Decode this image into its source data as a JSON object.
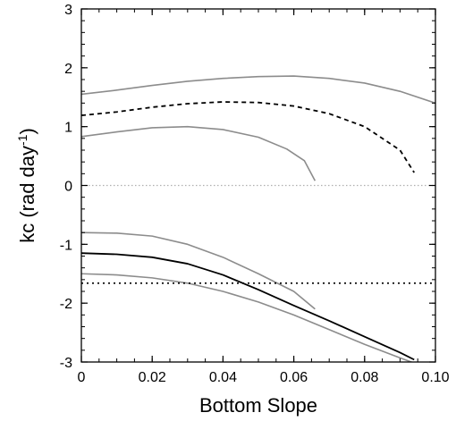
{
  "chart_data": {
    "type": "line",
    "xlabel": "Bottom Slope",
    "ylabel": {
      "main": "kc (rad day",
      "sup": "-1",
      "close": ")"
    },
    "xlim": [
      0,
      0.1
    ],
    "ylim": [
      -3,
      3
    ],
    "xticks": [
      0,
      0.02,
      0.04,
      0.06,
      0.08,
      0.1
    ],
    "xtick_labels": [
      "0",
      "0.02",
      "0.04",
      "0.06",
      "0.08",
      "0.10"
    ],
    "yticks": [
      -3,
      -2,
      -1,
      0,
      1,
      2,
      3
    ],
    "ytick_labels": [
      "-3",
      "-2",
      "-1",
      "0",
      "1",
      "2",
      "3"
    ],
    "grid": false,
    "legend": "none",
    "series": [
      {
        "style": "gray-solid",
        "color": "#8c8c8c",
        "points": [
          [
            0.0,
            1.55
          ],
          [
            0.01,
            1.62
          ],
          [
            0.02,
            1.7
          ],
          [
            0.03,
            1.77
          ],
          [
            0.04,
            1.82
          ],
          [
            0.05,
            1.85
          ],
          [
            0.06,
            1.86
          ],
          [
            0.07,
            1.82
          ],
          [
            0.08,
            1.74
          ],
          [
            0.09,
            1.6
          ],
          [
            0.1,
            1.4
          ]
        ]
      },
      {
        "style": "black-dashed",
        "color": "#000000",
        "points": [
          [
            0.0,
            1.19
          ],
          [
            0.01,
            1.25
          ],
          [
            0.02,
            1.33
          ],
          [
            0.03,
            1.39
          ],
          [
            0.04,
            1.42
          ],
          [
            0.05,
            1.41
          ],
          [
            0.06,
            1.35
          ],
          [
            0.07,
            1.22
          ],
          [
            0.08,
            1.0
          ],
          [
            0.09,
            0.6
          ],
          [
            0.094,
            0.22
          ]
        ]
      },
      {
        "style": "gray-solid",
        "color": "#8c8c8c",
        "points": [
          [
            0.0,
            0.83
          ],
          [
            0.01,
            0.91
          ],
          [
            0.02,
            0.98
          ],
          [
            0.03,
            1.0
          ],
          [
            0.04,
            0.95
          ],
          [
            0.05,
            0.82
          ],
          [
            0.058,
            0.62
          ],
          [
            0.063,
            0.42
          ],
          [
            0.066,
            0.08
          ]
        ]
      },
      {
        "style": "gray-dotted",
        "color": "#b0b0b0",
        "points": [
          [
            0.0,
            0.0
          ],
          [
            0.1,
            0.0
          ]
        ]
      },
      {
        "style": "gray-solid",
        "color": "#8c8c8c",
        "points": [
          [
            0.0,
            -0.8
          ],
          [
            0.01,
            -0.81
          ],
          [
            0.02,
            -0.86
          ],
          [
            0.03,
            -1.0
          ],
          [
            0.04,
            -1.22
          ],
          [
            0.05,
            -1.5
          ],
          [
            0.06,
            -1.8
          ],
          [
            0.066,
            -2.1
          ]
        ]
      },
      {
        "style": "black-solid",
        "color": "#000000",
        "points": [
          [
            0.0,
            -1.15
          ],
          [
            0.01,
            -1.17
          ],
          [
            0.02,
            -1.22
          ],
          [
            0.03,
            -1.33
          ],
          [
            0.04,
            -1.52
          ],
          [
            0.05,
            -1.77
          ],
          [
            0.06,
            -2.04
          ],
          [
            0.07,
            -2.3
          ],
          [
            0.08,
            -2.57
          ],
          [
            0.09,
            -2.84
          ],
          [
            0.094,
            -2.96
          ]
        ]
      },
      {
        "style": "gray-solid",
        "color": "#8c8c8c",
        "points": [
          [
            0.0,
            -1.5
          ],
          [
            0.01,
            -1.52
          ],
          [
            0.02,
            -1.57
          ],
          [
            0.03,
            -1.66
          ],
          [
            0.04,
            -1.8
          ],
          [
            0.05,
            -1.98
          ],
          [
            0.06,
            -2.2
          ],
          [
            0.07,
            -2.45
          ],
          [
            0.08,
            -2.7
          ],
          [
            0.09,
            -2.93
          ],
          [
            0.1,
            -3.15
          ]
        ]
      },
      {
        "style": "black-dotted",
        "color": "#000000",
        "points": [
          [
            0.0,
            -1.66
          ],
          [
            0.1,
            -1.66
          ]
        ]
      }
    ]
  }
}
